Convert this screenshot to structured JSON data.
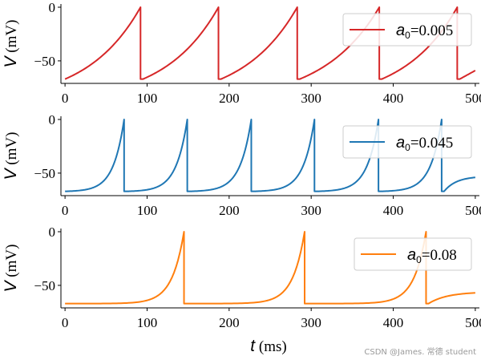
{
  "chart_data": [
    {
      "type": "line",
      "name": "panel-1",
      "legend": {
        "symbol": "a",
        "subscript": "0",
        "value_text": "=0.005",
        "placement": "upper-right"
      },
      "color": "#d62728",
      "xlim": [
        -5,
        505
      ],
      "ylim": [
        -71,
        3
      ],
      "xticks": [
        0,
        100,
        200,
        300,
        400,
        500
      ],
      "yticks": [
        0,
        -50
      ],
      "ylabel": {
        "symbol": "V",
        "unit": " (mV)"
      },
      "xlabel": null,
      "v_reset": -67,
      "spike_times": [
        92,
        187,
        283,
        383,
        478
      ],
      "curve_shape": 1.4,
      "end_value": -59,
      "x_end": 500
    },
    {
      "type": "line",
      "name": "panel-2",
      "legend": {
        "symbol": "a",
        "subscript": "0",
        "value_text": "=0.045",
        "placement": "upper-right"
      },
      "color": "#1f77b4",
      "xlim": [
        -5,
        505
      ],
      "ylim": [
        -71,
        3
      ],
      "xticks": [
        0,
        100,
        200,
        300,
        400,
        500
      ],
      "yticks": [
        0,
        -50
      ],
      "ylabel": {
        "symbol": "V",
        "unit": " (mV)"
      },
      "xlabel": null,
      "v_reset": -67,
      "spike_times": [
        72,
        149,
        227,
        304,
        382,
        459
      ],
      "curve_shape": 5.5,
      "end_value": -54,
      "x_end": 500
    },
    {
      "type": "line",
      "name": "panel-3",
      "legend": {
        "symbol": "a",
        "subscript": "0",
        "value_text": "=0.08",
        "placement": "upper-right"
      },
      "color": "#ff7f0e",
      "xlim": [
        -5,
        505
      ],
      "ylim": [
        -71,
        3
      ],
      "xticks": [
        0,
        100,
        200,
        300,
        400,
        500
      ],
      "yticks": [
        0,
        -50
      ],
      "ylabel": {
        "symbol": "V",
        "unit": " (mV)"
      },
      "xlabel": {
        "symbol": "t",
        "unit": " (ms)"
      },
      "v_reset": -67,
      "spike_times": [
        145,
        292,
        440
      ],
      "curve_shape": 10,
      "end_value": -57,
      "x_end": 500
    }
  ],
  "watermark": "CSDN @James. 常德 student"
}
